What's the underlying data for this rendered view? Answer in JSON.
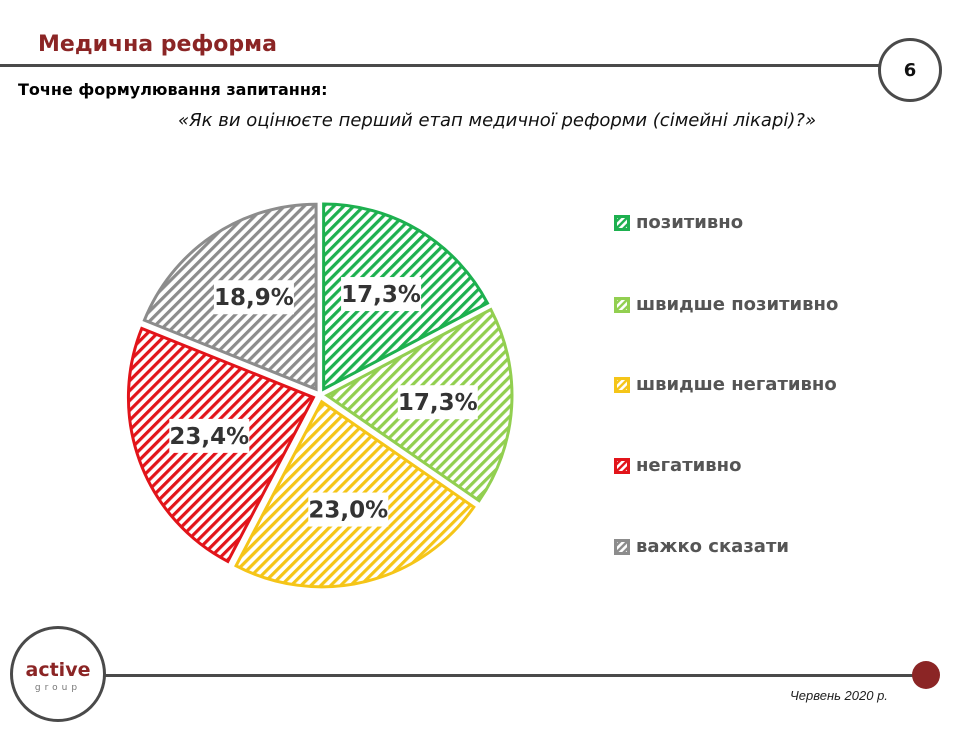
{
  "header": {
    "title": "Медична реформа",
    "page_number": "6"
  },
  "question": {
    "label": "Точне формулювання запитання:",
    "text": "«Як ви оцінюєте перший етап медичної реформи (сімейні лікарі)?»"
  },
  "chart_data": {
    "type": "pie",
    "slices": [
      {
        "label": "позитивно",
        "value": 17.3,
        "display": "17,3%",
        "color": "#1db04f"
      },
      {
        "label": "швидше позитивно",
        "value": 17.3,
        "display": "17,3%",
        "color": "#92cf50"
      },
      {
        "label": "швидше негативно",
        "value": 23.0,
        "display": "23,0%",
        "color": "#f5c518"
      },
      {
        "label": "негативно",
        "value": 23.4,
        "display": "23,4%",
        "color": "#e2141a"
      },
      {
        "label": "важко сказати",
        "value": 18.9,
        "display": "18,9%",
        "color": "#8c8c8c"
      }
    ],
    "legend_position": "right"
  },
  "footer": {
    "logo_main": "active",
    "logo_sub": "group",
    "date": "Червень 2020 р."
  },
  "colors": {
    "accent": "#8b2525",
    "rule": "#4a4a4a"
  }
}
